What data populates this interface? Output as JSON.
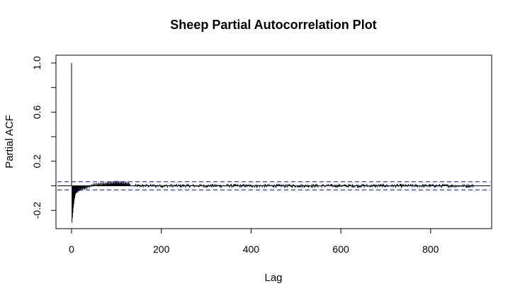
{
  "chart_data": {
    "type": "bar",
    "title": "Sheep Partial Autocorrelation Plot",
    "xlabel": "Lag",
    "ylabel": "Partial ACF",
    "xlim": [
      0,
      900
    ],
    "ylim": [
      -0.3,
      1.0
    ],
    "x_ticks": [
      0,
      200,
      400,
      600,
      800
    ],
    "x_tick_labels": [
      "0",
      "200",
      "400",
      "600",
      "800"
    ],
    "y_ticks": [
      -0.2,
      0.2,
      0.6,
      1.0
    ],
    "y_tick_labels": [
      "-0.2",
      "0.2",
      "0.6",
      "1.0"
    ],
    "confidence_band": {
      "lower": -0.033,
      "upper": 0.033,
      "color": "#0000ff",
      "style": "dashed"
    },
    "zero_line": true,
    "grid": false,
    "series": [
      {
        "values": {
          "lag0": 1.0,
          "first_lags": [
            {
              "lag": 1,
              "pacf": -0.3
            },
            {
              "lag": 2,
              "pacf": -0.26
            },
            {
              "lag": 3,
              "pacf": -0.22
            },
            {
              "lag": 4,
              "pacf": -0.18
            },
            {
              "lag": 5,
              "pacf": -0.15
            },
            {
              "lag": 6,
              "pacf": -0.12
            },
            {
              "lag": 7,
              "pacf": -0.1
            },
            {
              "lag": 8,
              "pacf": -0.08
            },
            {
              "lag": 10,
              "pacf": -0.06
            },
            {
              "lag": 12,
              "pacf": -0.05
            },
            {
              "lag": 15,
              "pacf": -0.04
            },
            {
              "lag": 20,
              "pacf": -0.03
            },
            {
              "lag": 30,
              "pacf": -0.02
            },
            {
              "lag": 50,
              "pacf": 0.01
            },
            {
              "lag": 80,
              "pacf": 0.02
            },
            {
              "lag": 100,
              "pacf": 0.03
            },
            {
              "lag": 130,
              "pacf": 0.02
            }
          ],
          "remaining_lags_range": [
            140,
            895
          ],
          "remaining_lags_typical_magnitude": 0.01
        },
        "color": "#000000"
      }
    ]
  }
}
